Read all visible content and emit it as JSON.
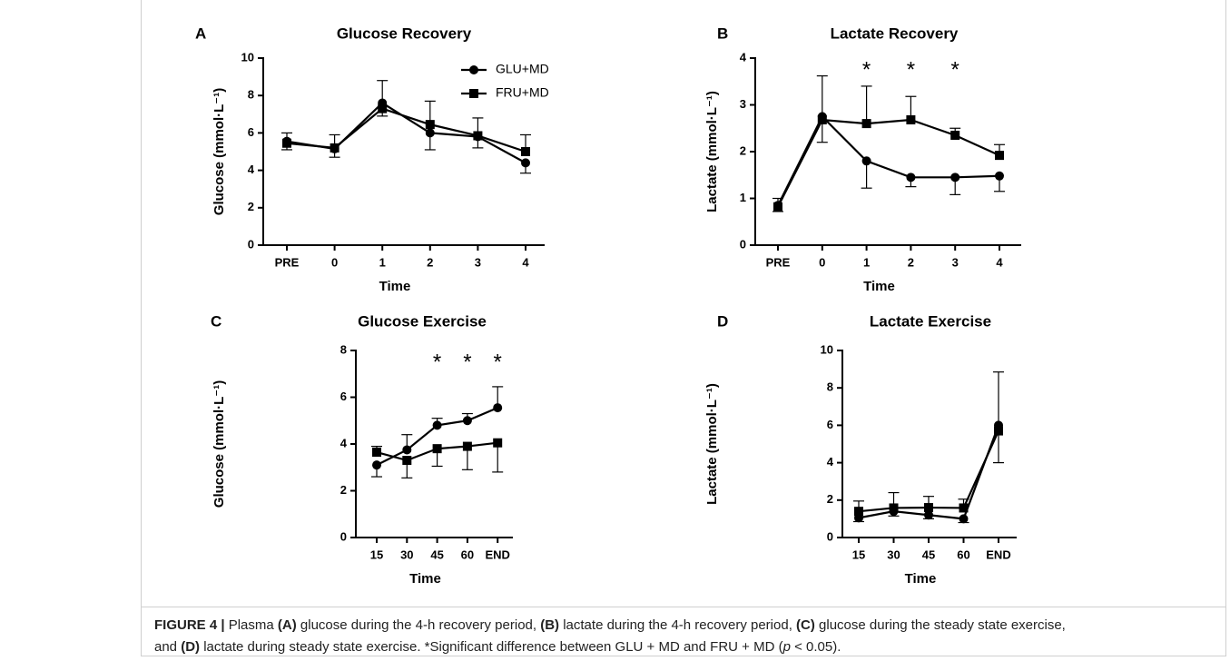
{
  "chart_data": [
    {
      "type": "line",
      "label": "A",
      "title": "Glucose Recovery",
      "xlabel": "Time",
      "ylabel": "Glucose (mmol·L⁻¹)",
      "categories": [
        "PRE",
        "0",
        "1",
        "2",
        "3",
        "4"
      ],
      "ylim": [
        0,
        10
      ],
      "yticks": [
        0,
        2,
        4,
        6,
        8,
        10
      ],
      "legend": true,
      "series": [
        {
          "name": "GLU+MD",
          "marker": "circle",
          "color": "#000000",
          "values": [
            5.55,
            5.15,
            7.6,
            6.0,
            5.8,
            4.4
          ],
          "errors": [
            0.45,
            0.45,
            1.2,
            0.9,
            0.6,
            0.55
          ]
        },
        {
          "name": "FRU+MD",
          "marker": "square",
          "color": "#000000",
          "values": [
            5.45,
            5.2,
            7.3,
            6.45,
            5.85,
            5.0
          ],
          "errors": [
            0.35,
            0.7,
            0.4,
            1.25,
            0.95,
            0.9
          ]
        }
      ]
    },
    {
      "type": "line",
      "label": "B",
      "title": "Lactate Recovery",
      "xlabel": "Time",
      "ylabel": "Lactate (mmol·L⁻¹)",
      "categories": [
        "PRE",
        "0",
        "1",
        "2",
        "3",
        "4"
      ],
      "ylim": [
        0,
        4
      ],
      "yticks": [
        0,
        1,
        2,
        3,
        4
      ],
      "legend": false,
      "annotations": [
        {
          "category": "1",
          "text": "*"
        },
        {
          "category": "2",
          "text": "*"
        },
        {
          "category": "3",
          "text": "*"
        }
      ],
      "series": [
        {
          "marker": "circle",
          "color": "#000000",
          "values": [
            0.85,
            2.75,
            1.8,
            1.45,
            1.45,
            1.48
          ],
          "errors": [
            0.15,
            0.87,
            0.58,
            0.2,
            0.37,
            0.33
          ]
        },
        {
          "marker": "square",
          "color": "#000000",
          "values": [
            0.82,
            2.68,
            2.6,
            2.68,
            2.35,
            1.92
          ],
          "errors": [
            0.1,
            0.48,
            0.8,
            0.5,
            0.15,
            0.23
          ]
        }
      ]
    },
    {
      "type": "line",
      "label": "C",
      "title": "Glucose Exercise",
      "xlabel": "Time",
      "ylabel": "Glucose (mmol·L⁻¹)",
      "categories": [
        "15",
        "30",
        "45",
        "60",
        "END"
      ],
      "ylim": [
        0,
        8
      ],
      "yticks": [
        0,
        2,
        4,
        6,
        8
      ],
      "legend": false,
      "annotations": [
        {
          "category": "45",
          "text": "*"
        },
        {
          "category": "60",
          "text": "*"
        },
        {
          "category": "END",
          "text": "*"
        }
      ],
      "series": [
        {
          "marker": "circle",
          "color": "#000000",
          "values": [
            3.1,
            3.75,
            4.8,
            5.0,
            5.55
          ],
          "errors": [
            0.5,
            0.65,
            0.3,
            0.3,
            0.9
          ]
        },
        {
          "marker": "square",
          "color": "#000000",
          "values": [
            3.65,
            3.3,
            3.8,
            3.9,
            4.05
          ],
          "errors": [
            0.25,
            0.75,
            0.75,
            1.0,
            1.25
          ]
        }
      ]
    },
    {
      "type": "line",
      "label": "D",
      "title": "Lactate Exercise",
      "xlabel": "Time",
      "ylabel": "Lactate (mmol·L⁻¹)",
      "categories": [
        "15",
        "30",
        "45",
        "60",
        "END"
      ],
      "ylim": [
        0,
        10
      ],
      "yticks": [
        0,
        2,
        4,
        6,
        8,
        10
      ],
      "legend": false,
      "series": [
        {
          "marker": "circle",
          "color": "#000000",
          "values": [
            1.05,
            1.4,
            1.2,
            1.0,
            6.0
          ],
          "errors": [
            0.2,
            0.25,
            0.2,
            0.2,
            2.85
          ]
        },
        {
          "marker": "square",
          "color": "#000000",
          "values": [
            1.4,
            1.58,
            1.6,
            1.58,
            5.7
          ],
          "errors": [
            0.55,
            0.82,
            0.6,
            0.47,
            1.7
          ]
        }
      ]
    }
  ],
  "caption": [
    {
      "text": "FIGURE 4 |",
      "bold": true
    },
    {
      "text": " Plasma "
    },
    {
      "text": "(A)",
      "bold": true
    },
    {
      "text": " glucose during the 4-h recovery period, "
    },
    {
      "text": "(B)",
      "bold": true
    },
    {
      "text": " lactate during the 4-h recovery period, "
    },
    {
      "text": "(C)",
      "bold": true
    },
    {
      "text": " glucose during the steady state exercise, and "
    },
    {
      "text": "(D)",
      "bold": true
    },
    {
      "text": " lactate during steady state exercise. *Significant difference between GLU + MD and FRU + MD ("
    },
    {
      "text": "p",
      "italic": true
    },
    {
      "text": " < 0.05)."
    }
  ]
}
